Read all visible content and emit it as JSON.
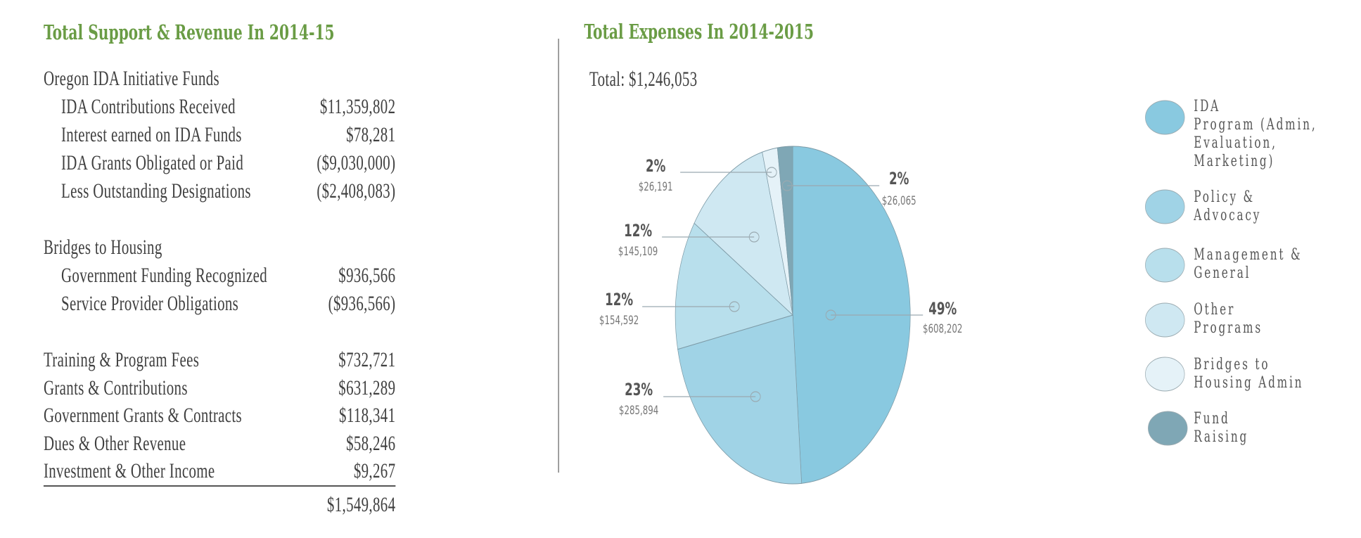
{
  "revenue": {
    "title": "Total Support & Revenue In 2014-15",
    "groups": [
      {
        "heading": "Oregon IDA Initiative Funds",
        "rows": [
          {
            "label": "IDA Contributions Received",
            "value": "$11,359,802"
          },
          {
            "label": "Interest earned on IDA Funds",
            "value": "$78,281"
          },
          {
            "label": "IDA Grants Obligated or Paid",
            "value": "($9,030,000)"
          },
          {
            "label": "Less Outstanding Designations",
            "value": "($2,408,083)"
          }
        ]
      },
      {
        "heading": "Bridges to Housing",
        "rows": [
          {
            "label": "Government Funding Recognized",
            "value": "$936,566"
          },
          {
            "label": "Service Provider Obligations",
            "value": "($936,566)"
          }
        ]
      }
    ],
    "items": [
      {
        "label": "Training & Program Fees",
        "value": "$732,721"
      },
      {
        "label": "Grants & Contributions",
        "value": "$631,289"
      },
      {
        "label": "Government Grants & Contracts",
        "value": "$118,341"
      },
      {
        "label": "Dues & Other Revenue",
        "value": "$58,246"
      },
      {
        "label": "Investment & Other Income",
        "value": "$9,267"
      }
    ],
    "total": "$1,549,864"
  },
  "chart_data": {
    "type": "pie",
    "title": "Total Expenses In 2014-2015",
    "subtitle": "Total: $1,246,053",
    "legend_position": "right",
    "slices": [
      {
        "name": "IDA Program (Admin, Evaluation, Marketing)",
        "legend_lines": [
          "IDA",
          "Program (Admin,",
          "Evaluation,",
          "Marketing)"
        ],
        "value": 608202,
        "value_label": "$608,202",
        "percent_label": "49%",
        "color": "#89c9e0"
      },
      {
        "name": "Policy & Advocacy",
        "legend_lines": [
          "Policy &",
          "Advocacy"
        ],
        "value": 285894,
        "value_label": "$285,894",
        "percent_label": "23%",
        "color": "#a0d3e6"
      },
      {
        "name": "Management & General",
        "legend_lines": [
          "Management &",
          "General"
        ],
        "value": 154592,
        "value_label": "$154,592",
        "percent_label": "12%",
        "color": "#b8dfec"
      },
      {
        "name": "Other Programs",
        "legend_lines": [
          "Other",
          "Programs"
        ],
        "value": 145109,
        "value_label": "$145,109",
        "percent_label": "12%",
        "color": "#cfe8f2"
      },
      {
        "name": "Bridges to Housing Admin",
        "legend_lines": [
          "Bridges to",
          "Housing Admin"
        ],
        "value": 26191,
        "value_label": "$26,191",
        "percent_label": "2%",
        "color": "#e5f2f8"
      },
      {
        "name": "Fund Raising",
        "legend_lines": [
          "Fund",
          "Raising"
        ],
        "value": 26065,
        "value_label": "$26,065",
        "percent_label": "2%",
        "color": "#7fa7b5"
      }
    ]
  }
}
